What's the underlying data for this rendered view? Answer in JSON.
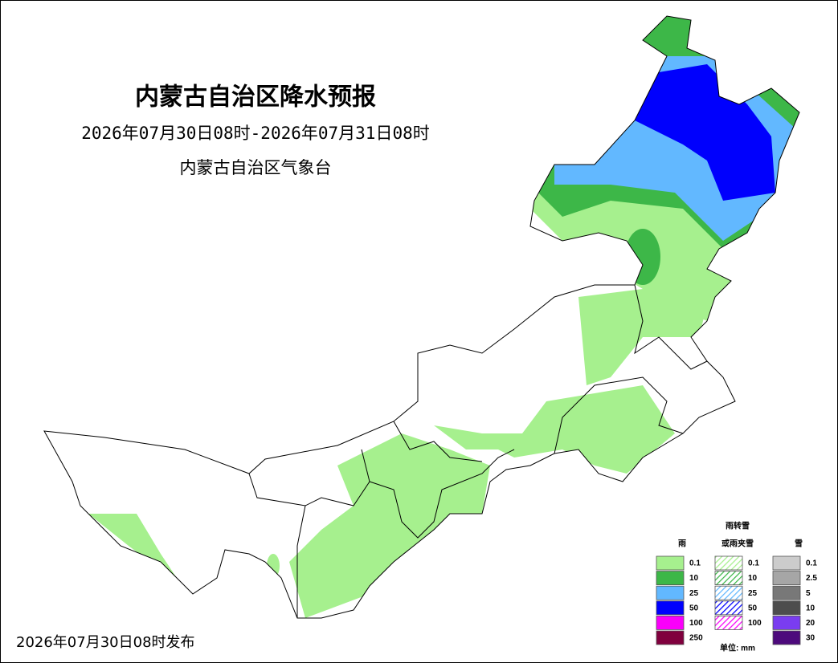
{
  "header": {
    "title": "内蒙古自治区降水预报",
    "period": "2026年07月30日08时-2026年07月31日08时",
    "issuer": "内蒙古自治区气象台"
  },
  "footer": {
    "issued": "2026年07月30日08时发布"
  },
  "legend": {
    "rain": {
      "title": "雨",
      "items": [
        {
          "label": "0.1",
          "color": "#a6f08e"
        },
        {
          "label": "10",
          "color": "#3db748"
        },
        {
          "label": "25",
          "color": "#62b8ff"
        },
        {
          "label": "50",
          "color": "#0000fd"
        },
        {
          "label": "100",
          "color": "#fa00fa"
        },
        {
          "label": "250",
          "color": "#80003e"
        }
      ]
    },
    "mixed": {
      "title": [
        "雨转雪",
        "或雨夹雪"
      ],
      "items": [
        {
          "label": "0.1",
          "color": "#a6f08e"
        },
        {
          "label": "10",
          "color": "#3db748"
        },
        {
          "label": "25",
          "color": "#62b8ff"
        },
        {
          "label": "50",
          "color": "#0000fd"
        },
        {
          "label": "100",
          "color": "#fa00fa"
        }
      ]
    },
    "snow": {
      "title": "雪",
      "items": [
        {
          "label": "0.1",
          "color": "#cccccc"
        },
        {
          "label": "2.5",
          "color": "#a6a6a6"
        },
        {
          "label": "5",
          "color": "#787878"
        },
        {
          "label": "10",
          "color": "#4d4d4d"
        },
        {
          "label": "20",
          "color": "#7a3df0"
        },
        {
          "label": "30",
          "color": "#4d0a7c"
        }
      ]
    },
    "unit": "单位: mm"
  }
}
